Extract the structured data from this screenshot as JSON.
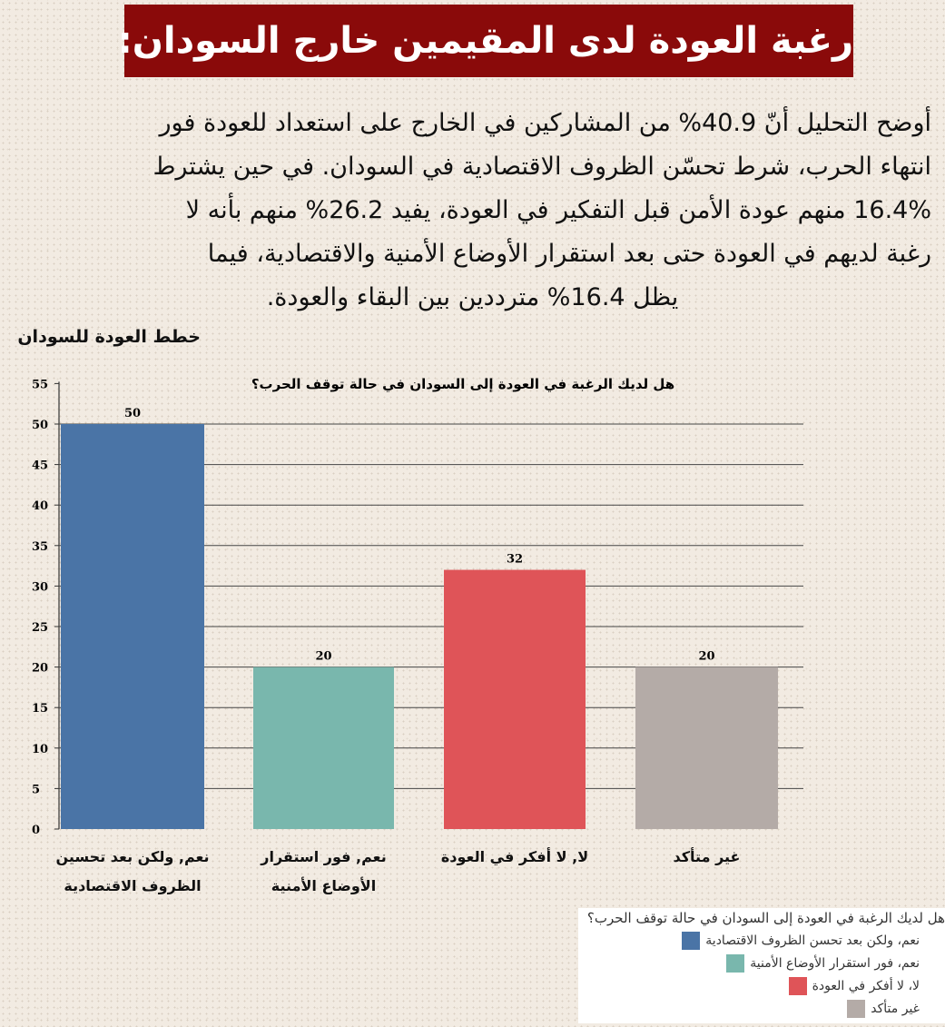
{
  "title": "رغبة العودة لدى المقيمين خارج السودان:",
  "paragraph_lines": [
    "أوضح التحليل أنّ 40.9% من المشاركين في الخارج على استعداد للعودة فور",
    "انتهاء الحرب، شرط تحسّن الظروف الاقتصادية في السودان. في حين يشترط",
    "16.4% منهم عودة الأمن قبل التفكير في العودة، يفيد 26.2% منهم بأنه لا",
    "رغبة لديهم في العودة حتى بعد استقرار الأوضاع الأمنية والاقتصادية، فيما",
    "يظل 16.4% مترددين بين البقاء والعودة."
  ],
  "section_title": "خطط العودة للسودان",
  "chart_data": {
    "type": "bar",
    "title": "هل لديك الرغبة في العودة إلى السودان في حالة توقف الحرب؟",
    "categories": [
      "نعم, ولكن بعد تحسين الظروف الاقتصادية",
      "نعم, فور استقرار الأوضاع الأمنية",
      "لا, لا أفكر في العودة",
      "غير متأكد"
    ],
    "values": [
      50,
      20,
      32,
      20
    ],
    "colors": [
      "#4a74a6",
      "#79b7ad",
      "#df5458",
      "#b4aba7"
    ],
    "ylim": [
      0,
      55
    ],
    "yticks": [
      0,
      5,
      10,
      15,
      20,
      25,
      30,
      35,
      40,
      45,
      50,
      55
    ],
    "grid": true,
    "xlabel": "",
    "ylabel": "",
    "legend": {
      "position": "bottom-right",
      "title": "هل لديك الرغبة في العودة إلى السودان في حالة توقف الحرب؟",
      "entries": [
        "نعم، ولكن بعد تحسن الظروف الاقتصادية",
        "نعم، فور استقرار الأوضاع الأمنية",
        "لا، لا أفكر في العودة",
        "غير متأكد"
      ]
    }
  }
}
